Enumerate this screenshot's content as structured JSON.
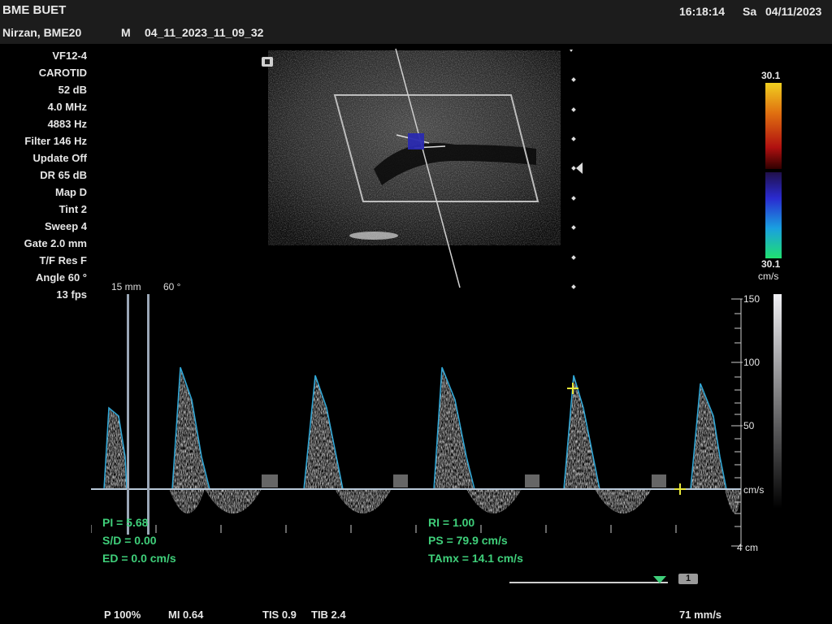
{
  "header": {
    "institution": "BME BUET",
    "time": "16:18:14",
    "day": "Sa",
    "date": "04/11/2023",
    "patient": "Nirzan, BME20",
    "sex": "M",
    "exam_id": "04_11_2023_11_09_32"
  },
  "params": [
    "VF12-4",
    "CAROTID",
    "52 dB",
    "4.0 MHz",
    "4883 Hz",
    "Filter 146 Hz",
    "Update Off",
    "DR 65 dB",
    "Map D",
    "Tint 2",
    "Sweep 4",
    "Gate 2.0 mm",
    "T/F Res F",
    "Angle 60 °",
    "13 fps"
  ],
  "depth_label": "15 mm",
  "angle_label": "60 °",
  "color_scale": {
    "top": "30.1",
    "bottom": "30.1",
    "unit": "cm/s"
  },
  "velocity_scale": {
    "ticks": [
      "150",
      "100",
      "50"
    ],
    "unit": "cm/s",
    "range_cm_s": [
      0,
      150
    ]
  },
  "time_axis_label": "4 cm",
  "measurements": {
    "pi": "PI = 5.68",
    "sd": "S/D = 0.00",
    "ed": "ED = 0.0 cm/s",
    "ri": "RI = 1.00",
    "ps": "PS = 79.9 cm/s",
    "tamx": "TAmx = 14.1 cm/s"
  },
  "sweep_indicator": "1",
  "footer": {
    "power": "P 100%",
    "mi": "MI 0.64",
    "tis": "TIS 0.9",
    "tib": "TIB 2.4",
    "sweep_speed": "71 mm/s"
  },
  "colors": {
    "measurement": "#3fcf7a",
    "cursor": "#e8e83a",
    "envelope": "#2fa8d8"
  }
}
